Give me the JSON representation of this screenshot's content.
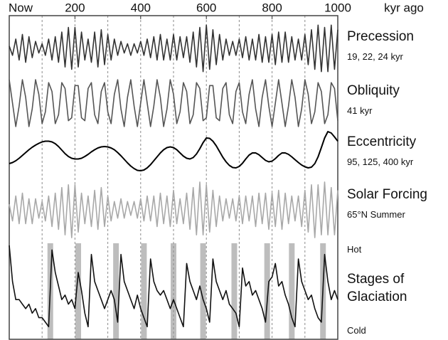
{
  "chart_data": {
    "type": "line",
    "xlim": [
      0,
      1000
    ],
    "xticks": [
      {
        "value": 0,
        "label": "Now"
      },
      200,
      400,
      600,
      800,
      1000
    ],
    "xgrid": [
      100,
      200,
      300,
      400,
      500,
      600,
      700,
      800,
      900
    ],
    "xlabel": "kyr ago",
    "x": [
      0,
      10,
      20,
      30,
      40,
      50,
      60,
      70,
      80,
      90,
      100,
      110,
      120,
      130,
      140,
      150,
      160,
      170,
      180,
      190,
      200,
      210,
      220,
      230,
      240,
      250,
      260,
      270,
      280,
      290,
      300,
      310,
      320,
      330,
      340,
      350,
      360,
      370,
      380,
      390,
      400,
      410,
      420,
      430,
      440,
      450,
      460,
      470,
      480,
      490,
      500,
      510,
      520,
      530,
      540,
      550,
      560,
      570,
      580,
      590,
      600,
      610,
      620,
      630,
      640,
      650,
      660,
      670,
      680,
      690,
      700,
      710,
      720,
      730,
      740,
      750,
      760,
      770,
      780,
      790,
      800,
      810,
      820,
      830,
      840,
      850,
      860,
      870,
      880,
      890,
      900,
      910,
      920,
      930,
      940,
      950,
      960,
      970,
      980,
      990,
      1000
    ],
    "highlights": [
      125,
      210,
      325,
      410,
      500,
      590,
      685,
      785,
      860,
      955
    ],
    "highlight_color": "#bdbdbd",
    "series": [
      {
        "name": "Precession",
        "subtitle": "19, 22, 24 kyr",
        "color": "#333333",
        "ylim": [
          -11,
          11
        ],
        "values": [
          1,
          -3,
          4,
          -5,
          6,
          -6,
          5,
          -4,
          3,
          -2,
          2,
          -3,
          4,
          -5,
          5,
          -6,
          7,
          -8,
          9,
          -9,
          9,
          -8,
          7,
          -5,
          4,
          -6,
          7,
          -8,
          8,
          -7,
          6,
          -5,
          4,
          -3,
          3,
          -2,
          2,
          -3,
          2,
          -2,
          3,
          -3,
          4,
          -4,
          5,
          -5,
          6,
          -5,
          4,
          -5,
          6,
          -5,
          5,
          -4,
          5,
          -6,
          7,
          -8,
          9,
          -10,
          10,
          -9,
          8,
          -7,
          6,
          -5,
          4,
          -3,
          3,
          -3,
          4,
          -4,
          5,
          -5,
          4,
          -5,
          6,
          -6,
          5,
          -6,
          6,
          -7,
          7,
          -6,
          7,
          -6,
          5,
          -5,
          4,
          -5,
          6,
          -7,
          8,
          -9,
          10,
          -10,
          9,
          -10,
          10,
          -9,
          8
        ]
      },
      {
        "name": "Obliquity",
        "subtitle": "41 kyr",
        "color": "#555555",
        "ylim": [
          -9,
          9
        ],
        "values": [
          8,
          0,
          -8,
          -1,
          8,
          2,
          -8,
          -2,
          8,
          3,
          -7,
          -3,
          7,
          4,
          -7,
          -4,
          7,
          5,
          -6,
          -5,
          6,
          6,
          -5,
          -6,
          5,
          7,
          -4,
          -7,
          4,
          7,
          -3,
          -7,
          3,
          8,
          -2,
          -8,
          2,
          8,
          -1,
          -8,
          0,
          8,
          0,
          -8,
          -1,
          8,
          2,
          -8,
          -2,
          8,
          3,
          -7,
          -3,
          7,
          4,
          -7,
          -4,
          7,
          5,
          -6,
          -5,
          6,
          6,
          -5,
          -6,
          5,
          7,
          -4,
          -7,
          4,
          7,
          -3,
          -7,
          3,
          8,
          -2,
          -8,
          2,
          8,
          -1,
          -8,
          0,
          8,
          0,
          -8,
          -1,
          8,
          2,
          -8,
          -2,
          8,
          3,
          -7,
          -3,
          7,
          4,
          -7,
          -4,
          7,
          5,
          -6
        ]
      },
      {
        "name": "Eccentricity",
        "subtitle": "95, 125, 400 kyr",
        "color": "#000000",
        "ylim": [
          -1,
          12
        ],
        "values": [
          2,
          2.3,
          2.8,
          3.5,
          4.3,
          5.1,
          5.9,
          6.6,
          7.2,
          7.7,
          8.1,
          8.3,
          8.3,
          8.1,
          7.6,
          6.8,
          5.8,
          4.8,
          4,
          3.5,
          3.3,
          3.3,
          3.5,
          4,
          4.6,
          5.3,
          5.9,
          6.4,
          6.7,
          6.8,
          6.7,
          6.4,
          5.9,
          5.1,
          4.2,
          3.2,
          2.2,
          1.3,
          0.6,
          0.1,
          0,
          0.2,
          0.8,
          1.7,
          2.8,
          3.9,
          5,
          5.9,
          6.5,
          6.7,
          6.5,
          5.9,
          5,
          4.1,
          3.5,
          3.3,
          3.7,
          4.7,
          6.2,
          7.9,
          9.2,
          9.1,
          8.3,
          7,
          5.4,
          3.8,
          2.5,
          1.5,
          0.9,
          0.8,
          1.2,
          2.1,
          3.3,
          4.4,
          5,
          5,
          4.5,
          3.7,
          2.9,
          2.5,
          2.7,
          3.4,
          4.3,
          5,
          5,
          4.6,
          3.9,
          3.1,
          2.3,
          1.6,
          1.1,
          0.8,
          1,
          2,
          3.9,
          6.5,
          9.2,
          11,
          10.6,
          9.5,
          8.3
        ]
      },
      {
        "name": "Solar Forcing",
        "subtitle": "65°N Summer",
        "color": "#a8a8a8",
        "ylim": [
          -11,
          11
        ],
        "values": [
          2,
          -4,
          5,
          -5,
          6,
          -5,
          4,
          -5,
          4,
          -3,
          3,
          -4,
          5,
          -6,
          6,
          -7,
          8,
          -9,
          9,
          -10,
          9,
          -8,
          6,
          -5,
          5,
          -6,
          7,
          -7,
          8,
          -6,
          5,
          -4,
          3,
          -3,
          4,
          -3,
          3,
          -2,
          3,
          -3,
          4,
          -4,
          5,
          -4,
          5,
          -6,
          6,
          -5,
          5,
          -6,
          7,
          -5,
          4,
          -5,
          6,
          -7,
          8,
          -9,
          10,
          -9,
          9,
          -8,
          7,
          -6,
          5,
          -4,
          4,
          -3,
          4,
          -4,
          5,
          -5,
          5,
          -4,
          5,
          -6,
          6,
          -5,
          6,
          -7,
          6,
          -6,
          7,
          -7,
          6,
          -5,
          5,
          -4,
          5,
          -6,
          7,
          -8,
          9,
          -10,
          9,
          -9,
          10,
          -9,
          8,
          -9,
          7
        ]
      },
      {
        "name": "Stages of Glaciation",
        "top_label": "Hot",
        "bottom_label": "Cold",
        "color": "#111111",
        "ylim": [
          0,
          10
        ],
        "values": [
          10,
          6,
          4,
          4,
          3.5,
          3,
          3.5,
          2.5,
          3,
          2,
          2,
          1.5,
          1,
          9.5,
          7,
          5.5,
          4,
          4.5,
          3.5,
          4,
          3,
          7,
          5,
          2.5,
          1,
          9,
          6,
          5,
          4,
          3,
          4,
          5,
          4,
          1.5,
          9,
          6,
          5,
          4,
          3,
          4.5,
          3,
          2,
          1,
          8.5,
          6,
          5,
          4.5,
          5,
          4,
          3,
          4,
          3,
          2,
          1,
          8,
          6,
          5,
          4,
          5.5,
          4,
          3,
          1.5,
          8.5,
          6,
          5,
          4,
          5,
          3.5,
          3,
          2.5,
          1,
          7.5,
          5.5,
          6,
          4.5,
          5,
          4,
          3,
          1.5,
          6,
          6.5,
          8,
          5.5,
          6,
          4.5,
          3.5,
          2,
          1,
          8.5,
          6,
          5,
          4,
          4.5,
          3,
          2,
          1.5,
          9,
          6,
          4,
          5,
          4
        ]
      }
    ]
  }
}
